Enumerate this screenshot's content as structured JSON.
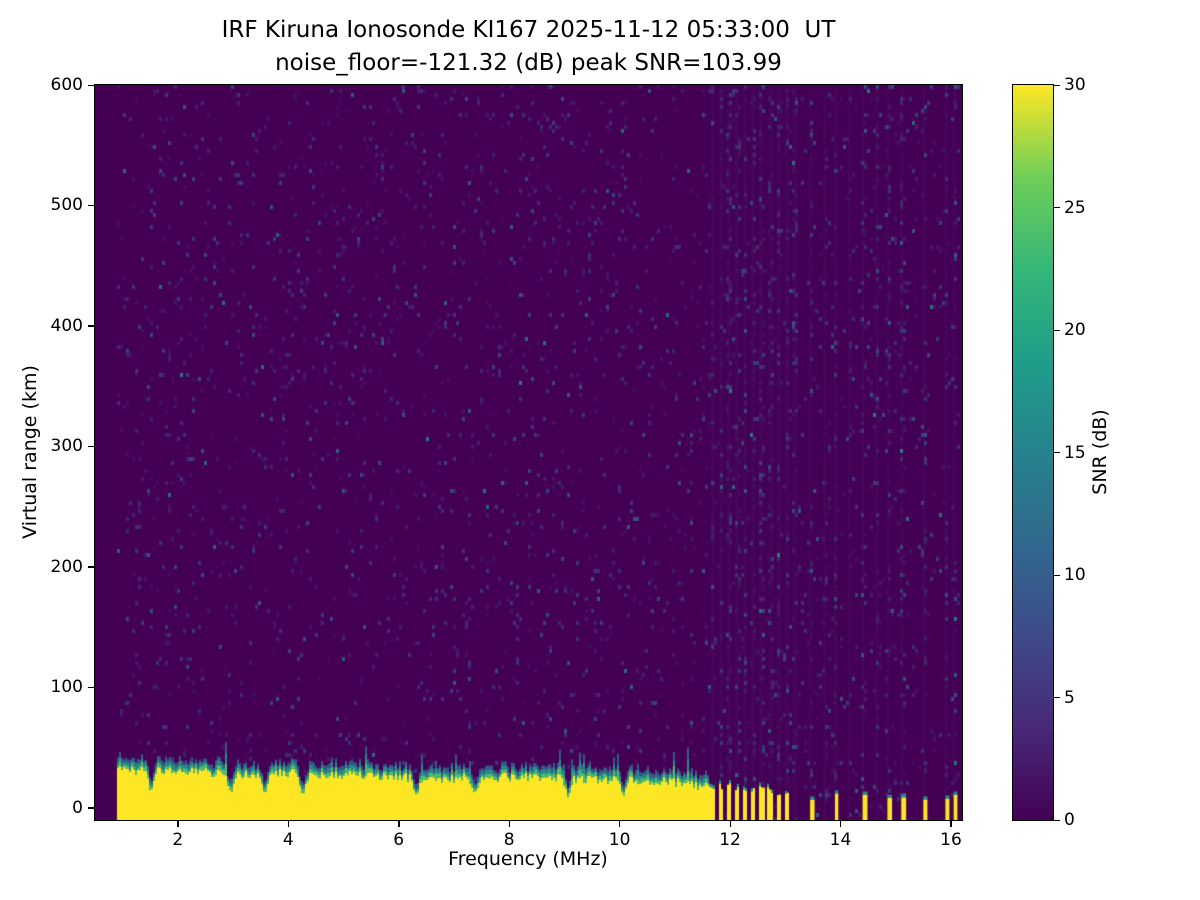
{
  "figure": {
    "title_line1": "IRF Kiruna Ionosonde KI167 2025-11-12 05:33:00  UT",
    "title_line2": "noise_floor=-121.32 (dB) peak SNR=103.99",
    "background": "#ffffff"
  },
  "chart_data": {
    "type": "heatmap",
    "title": "IRF Kiruna Ionosonde KI167 2025-11-12 05:33:00  UT",
    "subtitle": "noise_floor=-121.32 (dB) peak SNR=103.99",
    "station": "IRF Kiruna Ionosonde KI167",
    "timestamp_ut": "2025-11-12 05:33:00",
    "noise_floor_db": -121.32,
    "peak_snr_db": 103.99,
    "xlabel": "Frequency (MHz)",
    "ylabel": "Virtual range (km)",
    "xlim": [
      0.5,
      16.2
    ],
    "ylim": [
      -10,
      600
    ],
    "xticks": [
      2,
      4,
      6,
      8,
      10,
      12,
      14,
      16
    ],
    "yticks": [
      0,
      100,
      200,
      300,
      400,
      500,
      600
    ],
    "grid": false,
    "colorbar": {
      "label": "SNR (dB)",
      "ticks": [
        0,
        5,
        10,
        15,
        20,
        25,
        30
      ],
      "clim": [
        0,
        30
      ],
      "colormap": "viridis"
    },
    "colormap_stops": [
      [
        0.0,
        "#440154"
      ],
      [
        0.125,
        "#482878"
      ],
      [
        0.25,
        "#3e4a89"
      ],
      [
        0.375,
        "#31688e"
      ],
      [
        0.5,
        "#26828e"
      ],
      [
        0.625,
        "#1f9e89"
      ],
      [
        0.75,
        "#35b779"
      ],
      [
        0.875,
        "#6ece58"
      ],
      [
        1.0,
        "#fde725"
      ]
    ],
    "data_freq_range": [
      0.9,
      16.15
    ],
    "ground_clutter": {
      "freq_start": 0.9,
      "continuous_until": 11.6,
      "profile_freqs_mhz": [
        1,
        2,
        3,
        4,
        5,
        6,
        7,
        8,
        9,
        10,
        11,
        11.5
      ],
      "profile_top_km": [
        32,
        31,
        28,
        29,
        28,
        26,
        25,
        26,
        25,
        24,
        22,
        18
      ],
      "jitter_km": 8,
      "fringe_km": 12,
      "notches_mhz": [
        1.5,
        2.95,
        3.55,
        4.25,
        6.3,
        7.35,
        9.05,
        10.05
      ],
      "broken_region_mhz": [
        11.62,
        13.12
      ],
      "broken_bar_period_mhz": 0.15,
      "broken_bar_km": 20,
      "sparse_bars_mhz": [
        13.45,
        13.9,
        14.4,
        14.85,
        15.1,
        15.5,
        15.9,
        16.05
      ],
      "sparse_bar_km": 10
    },
    "noise": {
      "seed": 7,
      "speckle_density": 0.05,
      "striation_density": 0.17,
      "striation_region_mhz": [
        11.62,
        13.2
      ],
      "striation_columns_mhz": [
        13.45,
        13.7,
        13.9,
        14.15,
        14.4,
        14.65,
        14.85,
        15.1,
        15.5,
        15.9,
        16.05
      ]
    }
  }
}
